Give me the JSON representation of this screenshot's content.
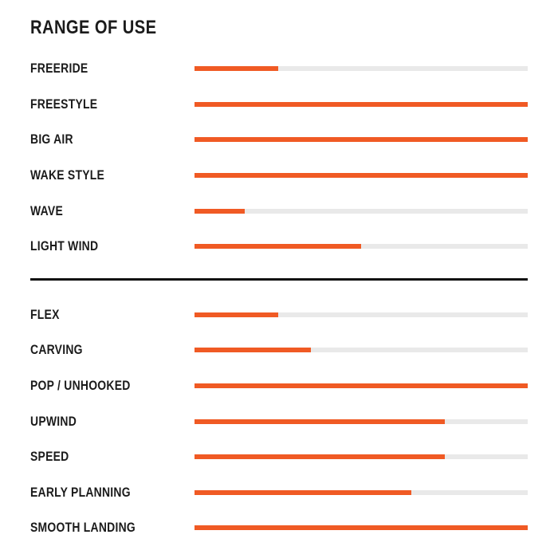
{
  "chart_data": {
    "type": "bar",
    "orientation": "horizontal",
    "title": "RANGE OF USE",
    "value_range": [
      0,
      100
    ],
    "grid": false,
    "legend": false,
    "colors": {
      "bar_fill": "#f05a24",
      "bar_track": "#e9e9e9",
      "text": "#1b1b1b",
      "divider": "#111111",
      "background": "#ffffff"
    },
    "sections": [
      {
        "rows": [
          {
            "label": "FREERIDE",
            "value_pct": 25
          },
          {
            "label": "FREESTYLE",
            "value_pct": 100
          },
          {
            "label": "BIG AIR",
            "value_pct": 100
          },
          {
            "label": "WAKE STYLE",
            "value_pct": 100
          },
          {
            "label": "WAVE",
            "value_pct": 15
          },
          {
            "label": "LIGHT WIND",
            "value_pct": 50
          }
        ]
      },
      {
        "rows": [
          {
            "label": "FLEX",
            "value_pct": 25
          },
          {
            "label": "CARVING",
            "value_pct": 35
          },
          {
            "label": "POP / UNHOOKED",
            "value_pct": 100
          },
          {
            "label": "UPWIND",
            "value_pct": 75
          },
          {
            "label": "SPEED",
            "value_pct": 75
          },
          {
            "label": "EARLY PLANNING",
            "value_pct": 65
          },
          {
            "label": "SMOOTH LANDING",
            "value_pct": 100
          }
        ]
      }
    ]
  }
}
